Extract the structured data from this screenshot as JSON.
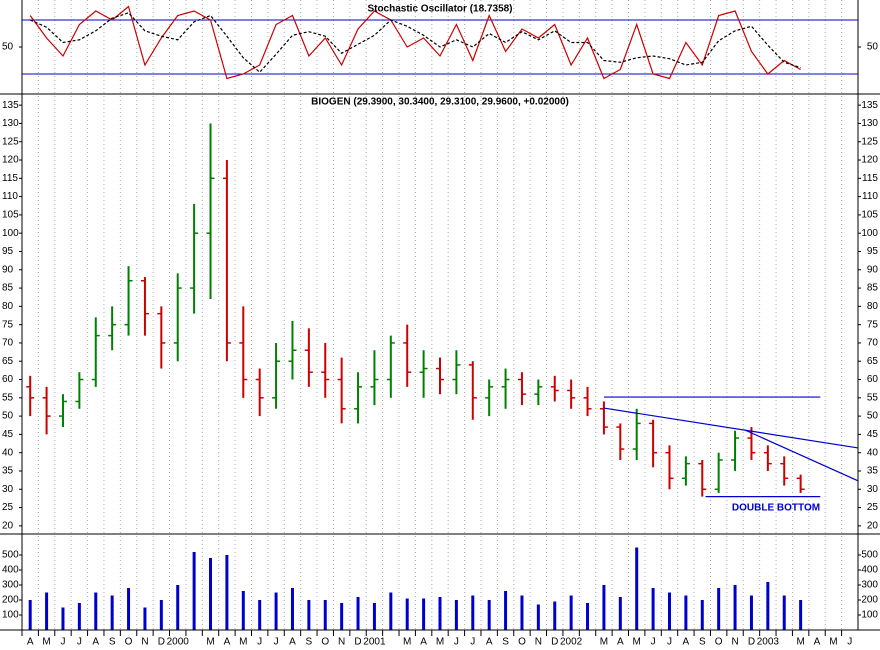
{
  "chart_data": [
    {
      "type": "line",
      "title": "Stochastic Oscillator (18.7358)",
      "ylim": [
        0,
        100
      ],
      "yticks": [
        50
      ],
      "levels": [
        20,
        80
      ],
      "level_color": "#0000cc",
      "series": [
        {
          "color": "#cc0000",
          "values": [
            85,
            60,
            40,
            75,
            90,
            80,
            95,
            30,
            60,
            85,
            90,
            80,
            15,
            20,
            30,
            75,
            85,
            40,
            60,
            30,
            70,
            90,
            80,
            50,
            60,
            40,
            75,
            35,
            85,
            45,
            70,
            60,
            75,
            30,
            60,
            15,
            25,
            75,
            20,
            15,
            55,
            30,
            85,
            90,
            45,
            20,
            35,
            25,
            null,
            null,
            null
          ]
        },
        {
          "color": "#000000",
          "dash": true,
          "values": [
            80,
            72,
            55,
            58,
            68,
            82,
            88,
            68,
            62,
            58,
            78,
            85,
            62,
            38,
            22,
            42,
            63,
            67,
            62,
            43,
            53,
            63,
            80,
            73,
            63,
            50,
            58,
            50,
            65,
            55,
            67,
            58,
            68,
            55,
            55,
            35,
            33,
            38,
            40,
            37,
            30,
            33,
            57,
            68,
            73,
            52,
            33,
            27,
            null,
            null,
            null
          ]
        }
      ]
    },
    {
      "type": "ohlc",
      "title": "BIOGEN (29.3900, 30.3400, 29.3100, 29.9600, +0.02000)",
      "ylim": [
        17.5,
        137.5
      ],
      "yticks": [
        20,
        25,
        30,
        35,
        40,
        45,
        50,
        55,
        60,
        65,
        70,
        75,
        80,
        85,
        90,
        95,
        100,
        105,
        110,
        115,
        120,
        125,
        130,
        135
      ],
      "up_color": "#008000",
      "down_color": "#cc0000",
      "open": [
        58,
        55,
        50,
        54,
        60,
        72,
        75,
        87,
        78,
        70,
        85,
        100,
        115,
        70,
        60,
        55,
        65,
        68,
        62,
        60,
        52,
        58,
        60,
        70,
        62,
        63,
        60,
        64,
        55,
        58,
        60,
        56,
        58,
        57,
        55,
        52,
        47,
        41,
        48,
        40,
        33,
        37,
        30,
        38,
        44,
        40,
        37,
        33,
        null,
        null,
        null
      ],
      "high": [
        61,
        58,
        56,
        62,
        77,
        80,
        91,
        88,
        80,
        89,
        108,
        130,
        120,
        80,
        63,
        70,
        76,
        74,
        70,
        66,
        62,
        68,
        72,
        75,
        68,
        66,
        68,
        65,
        60,
        63,
        62,
        60,
        61,
        60,
        58,
        54,
        48,
        52,
        49,
        42,
        39,
        38,
        40,
        46,
        47,
        42,
        39,
        34,
        null,
        null,
        null
      ],
      "low": [
        50,
        45,
        47,
        52,
        58,
        68,
        72,
        72,
        63,
        65,
        78,
        82,
        65,
        55,
        50,
        52,
        60,
        58,
        55,
        48,
        48,
        53,
        55,
        58,
        55,
        56,
        56,
        49,
        50,
        52,
        53,
        53,
        54,
        52,
        50,
        45,
        38,
        38,
        36,
        30,
        31,
        28,
        29,
        35,
        38,
        35,
        31,
        29,
        null,
        null,
        null
      ],
      "close": [
        55,
        50,
        54,
        60,
        72,
        75,
        87,
        78,
        70,
        85,
        100,
        115,
        70,
        60,
        55,
        65,
        68,
        62,
        60,
        52,
        58,
        60,
        70,
        62,
        63,
        60,
        64,
        55,
        58,
        60,
        56,
        58,
        57,
        55,
        52,
        47,
        41,
        48,
        40,
        33,
        37,
        30,
        38,
        44,
        40,
        37,
        33,
        30,
        null,
        null,
        null
      ],
      "trendline_color": "#0000cc",
      "trendlines": [
        {
          "x": [
            35,
            48.2
          ],
          "y": [
            55.2,
            55.2
          ]
        },
        {
          "x": [
            35,
            50.5
          ],
          "y": [
            52.2,
            41.3
          ]
        },
        {
          "x": [
            43.6,
            50.5
          ],
          "y": [
            46.2,
            32.3
          ]
        },
        {
          "x": [
            41.2,
            48.2
          ],
          "y": [
            28,
            28
          ]
        }
      ],
      "annotation": "DOUBLE BOTTOM"
    },
    {
      "type": "bar",
      "ylim": [
        0,
        620
      ],
      "yticks": [
        100,
        200,
        300,
        400,
        500
      ],
      "color": "#0000cc",
      "values": [
        200,
        250,
        150,
        180,
        250,
        230,
        280,
        150,
        200,
        300,
        520,
        480,
        500,
        260,
        200,
        250,
        280,
        200,
        200,
        180,
        220,
        180,
        250,
        210,
        210,
        220,
        200,
        230,
        200,
        260,
        230,
        170,
        190,
        230,
        180,
        300,
        220,
        550,
        280,
        250,
        230,
        200,
        280,
        300,
        230,
        320,
        230,
        200,
        null,
        null,
        null
      ],
      "categories": [
        "A",
        "M",
        "J",
        "J",
        "A",
        "S",
        "O",
        "N",
        "D",
        "2000",
        null,
        "M",
        "A",
        "M",
        "J",
        "J",
        "A",
        "S",
        "O",
        "N",
        "D",
        "2001",
        null,
        "M",
        "A",
        "M",
        "J",
        "J",
        "A",
        "S",
        "O",
        "N",
        "D",
        "2002",
        null,
        "M",
        "A",
        "M",
        "J",
        "J",
        "A",
        "S",
        "O",
        "N",
        "D",
        "2003",
        null,
        "M",
        "A",
        "M",
        "J"
      ]
    }
  ]
}
